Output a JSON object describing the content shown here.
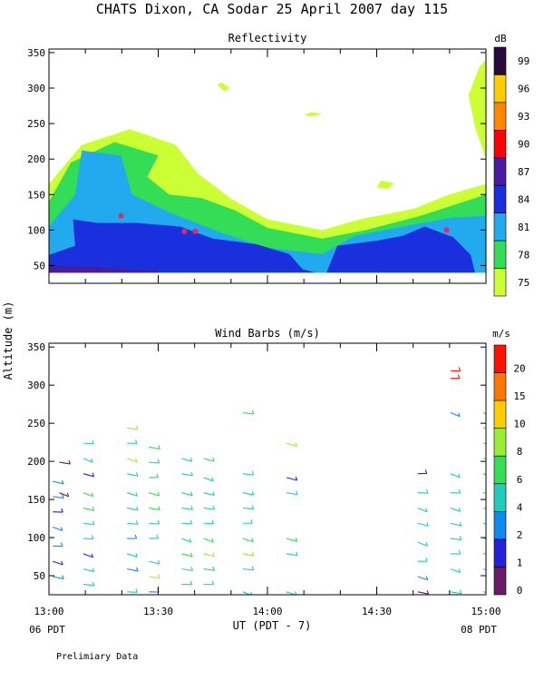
{
  "header": {
    "title": "CHATS Dixon, CA  Sodar  25 April 2007  day 115",
    "y_axis_label": "Altitude (m)",
    "x_axis_label": "UT  (PDT - 7)",
    "x_left_note": "06 PDT",
    "x_right_note": "08 PDT",
    "footer": "Prelimiary Data"
  },
  "chart_data": [
    {
      "type": "heatmap",
      "title": "Reflectivity",
      "colorbar_unit": "dB",
      "x_range": [
        "13:00",
        "15:00"
      ],
      "x_ticks": [
        "13:00",
        "13:30",
        "14:00",
        "14:30",
        "15:00"
      ],
      "ylim": [
        25,
        355
      ],
      "y_ticks": [
        50,
        100,
        150,
        200,
        250,
        300,
        350
      ],
      "levels": [
        {
          "label": "75",
          "color": "#ccff33"
        },
        {
          "label": "78",
          "color": "#33dd55"
        },
        {
          "label": "81",
          "color": "#22aaee"
        },
        {
          "label": "84",
          "color": "#1a2fdd"
        },
        {
          "label": "87",
          "color": "#4a1aa0"
        },
        {
          "label": "90",
          "color": "#ff0000"
        },
        {
          "label": "93",
          "color": "#ff8800"
        },
        {
          "label": "96",
          "color": "#ffcc00"
        },
        {
          "label": "99",
          "color": "#2a0a3a"
        }
      ],
      "contours": [
        {
          "level": "75",
          "points": [
            [
              13.0,
              40
            ],
            [
              13.0,
              165
            ],
            [
              13.15,
              220
            ],
            [
              13.37,
              242
            ],
            [
              13.58,
              220
            ],
            [
              13.68,
              180
            ],
            [
              13.83,
              145
            ],
            [
              14.0,
              115
            ],
            [
              14.25,
              100
            ],
            [
              14.42,
              115
            ],
            [
              14.67,
              130
            ],
            [
              14.83,
              150
            ],
            [
              15.0,
              165
            ],
            [
              15.0,
              40
            ]
          ]
        },
        {
          "level": "75",
          "points": [
            [
              15.0,
              200
            ],
            [
              14.95,
              245
            ],
            [
              14.92,
              290
            ],
            [
              14.97,
              330
            ],
            [
              15.0,
              340
            ]
          ]
        },
        {
          "level": "75",
          "points": [
            [
              13.77,
              305
            ],
            [
              13.8,
              296
            ],
            [
              13.83,
              300
            ],
            [
              13.79,
              308
            ]
          ]
        },
        {
          "level": "75",
          "points": [
            [
              14.17,
              262
            ],
            [
              14.21,
              260
            ],
            [
              14.25,
              264
            ],
            [
              14.2,
              266
            ]
          ]
        },
        {
          "level": "75",
          "points": [
            [
              14.5,
              160
            ],
            [
              14.55,
              158
            ],
            [
              14.58,
              166
            ],
            [
              14.52,
              170
            ]
          ]
        },
        {
          "level": "78",
          "points": [
            [
              13.0,
              40
            ],
            [
              13.0,
              140
            ],
            [
              13.1,
              195
            ],
            [
              13.3,
              224
            ],
            [
              13.5,
              205
            ],
            [
              13.45,
              175
            ],
            [
              13.55,
              150
            ],
            [
              13.7,
              145
            ],
            [
              13.85,
              128
            ],
            [
              14.0,
              103
            ],
            [
              14.25,
              88
            ],
            [
              14.45,
              100
            ],
            [
              14.7,
              120
            ],
            [
              14.9,
              140
            ],
            [
              15.0,
              150
            ],
            [
              15.0,
              40
            ]
          ]
        },
        {
          "level": "81",
          "points": [
            [
              13.0,
              40
            ],
            [
              13.0,
              105
            ],
            [
              13.12,
              150
            ],
            [
              13.15,
              212
            ],
            [
              13.33,
              205
            ],
            [
              13.38,
              150
            ],
            [
              13.55,
              125
            ],
            [
              13.8,
              95
            ],
            [
              14.0,
              75
            ],
            [
              14.25,
              66
            ],
            [
              14.4,
              92
            ],
            [
              14.62,
              105
            ],
            [
              14.85,
              118
            ],
            [
              15.0,
              120
            ],
            [
              15.0,
              40
            ]
          ]
        },
        {
          "level": "84",
          "points": [
            [
              13.0,
              40
            ],
            [
              13.0,
              65
            ],
            [
              13.12,
              78
            ],
            [
              13.11,
              115
            ],
            [
              13.22,
              110
            ],
            [
              13.4,
              110
            ],
            [
              13.6,
              105
            ],
            [
              13.75,
              88
            ],
            [
              13.95,
              80
            ],
            [
              14.1,
              66
            ],
            [
              14.16,
              45
            ],
            [
              14.22,
              40
            ]
          ]
        },
        {
          "level": "84",
          "points": [
            [
              14.27,
              40
            ],
            [
              14.32,
              78
            ],
            [
              14.5,
              85
            ],
            [
              14.62,
              92
            ],
            [
              14.72,
              105
            ],
            [
              14.85,
              90
            ],
            [
              14.93,
              65
            ],
            [
              14.95,
              40
            ]
          ]
        },
        {
          "level": "87",
          "points": [
            [
              13.0,
              40
            ],
            [
              13.0,
              50
            ],
            [
              13.2,
              48
            ],
            [
              13.5,
              42
            ],
            [
              13.5,
              40
            ]
          ]
        }
      ],
      "peaks": [
        {
          "x": 13.33,
          "y": 120
        },
        {
          "x": 13.62,
          "y": 98
        },
        {
          "x": 13.67,
          "y": 98
        },
        {
          "x": 14.82,
          "y": 100
        }
      ]
    },
    {
      "type": "scatter",
      "title": "Wind Barbs (m/s)",
      "colorbar_unit": "m/s",
      "x_range": [
        "13:00",
        "15:00"
      ],
      "x_ticks": [
        "13:00",
        "13:30",
        "14:00",
        "14:30",
        "15:00"
      ],
      "ylim": [
        25,
        355
      ],
      "y_ticks": [
        50,
        100,
        150,
        200,
        250,
        300,
        350
      ],
      "speed_levels": [
        {
          "label": "0",
          "color": "#6a1a6a"
        },
        {
          "label": "1",
          "color": "#2222dd"
        },
        {
          "label": "2",
          "color": "#1188ee"
        },
        {
          "label": "4",
          "color": "#22ccbb"
        },
        {
          "label": "6",
          "color": "#33dd55"
        },
        {
          "label": "8",
          "color": "#99ee33"
        },
        {
          "label": "10",
          "color": "#ffcc00"
        },
        {
          "label": "15",
          "color": "#ff7700"
        },
        {
          "label": "20",
          "color": "#ff1100"
        }
      ],
      "profiles": [
        {
          "x": 13.03,
          "heights": [
            50,
            70,
            90,
            115,
            135,
            155,
            175
          ],
          "levels": [
            2,
            1,
            2,
            2,
            1,
            2,
            2
          ]
        },
        {
          "x": 13.06,
          "heights": [
            160,
            200
          ],
          "levels": [
            0,
            0
          ]
        },
        {
          "x": 13.17,
          "heights": [
            40,
            60,
            80,
            100,
            120,
            140,
            160,
            185,
            205,
            225
          ],
          "levels": [
            3,
            3,
            1,
            3,
            3,
            4,
            4,
            1,
            3,
            3
          ]
        },
        {
          "x": 13.37,
          "heights": [
            30,
            60,
            80,
            100,
            120,
            140,
            160,
            185,
            205,
            225,
            245
          ],
          "levels": [
            3,
            2,
            3,
            2,
            3,
            3,
            3,
            3,
            5,
            3,
            5
          ]
        },
        {
          "x": 13.47,
          "heights": [
            30,
            50,
            70,
            100,
            120,
            140,
            160,
            180,
            200,
            220
          ],
          "levels": [
            2,
            5,
            3,
            3,
            3,
            4,
            4,
            4,
            3,
            4
          ]
        },
        {
          "x": 13.62,
          "heights": [
            40,
            60,
            80,
            100,
            120,
            140,
            160,
            185,
            205
          ],
          "levels": [
            3,
            3,
            4,
            3,
            3,
            3,
            3,
            3,
            3
          ]
        },
        {
          "x": 13.72,
          "heights": [
            40,
            60,
            80,
            100,
            120,
            140,
            160,
            180,
            205
          ],
          "levels": [
            3,
            3,
            5,
            4,
            3,
            3,
            3,
            3,
            4
          ]
        },
        {
          "x": 13.9,
          "heights": [
            30,
            60,
            80,
            100,
            120,
            140,
            160,
            185,
            265
          ],
          "levels": [
            3,
            3,
            5,
            4,
            3,
            3,
            3,
            3,
            4
          ]
        },
        {
          "x": 14.1,
          "heights": [
            30,
            80,
            100,
            160,
            180,
            225
          ],
          "levels": [
            3,
            3,
            4,
            3,
            1,
            5
          ]
        },
        {
          "x": 14.7,
          "heights": [
            30,
            50,
            70,
            95,
            120,
            140,
            160,
            185
          ],
          "levels": [
            0,
            2,
            3,
            3,
            3,
            3,
            3,
            1
          ]
        },
        {
          "x": 14.85,
          "heights": [
            30,
            60,
            80,
            100,
            120,
            140,
            160,
            185,
            265,
            310,
            320
          ],
          "levels": [
            3,
            3,
            3,
            3,
            3,
            3,
            3,
            3,
            2,
            8,
            8
          ]
        },
        {
          "x": 15.0,
          "heights": [
            30,
            60,
            80,
            100,
            120,
            140,
            160,
            185,
            205,
            225,
            245,
            265
          ],
          "levels": [
            3,
            3,
            4,
            4,
            4,
            4,
            4,
            4,
            4,
            4,
            4,
            4
          ]
        }
      ]
    }
  ]
}
